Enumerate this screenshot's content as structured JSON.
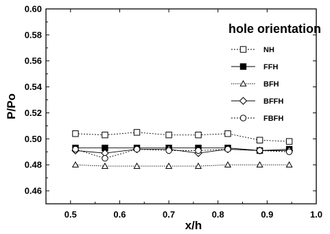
{
  "chart_data": {
    "type": "line",
    "title": "",
    "xlabel": "x/h",
    "ylabel": "P/Po",
    "xlim": [
      0.45,
      1.0
    ],
    "ylim": [
      0.45,
      0.6
    ],
    "xticks": [
      "0.5",
      "0.6",
      "0.7",
      "0.8",
      "0.9",
      "1.0"
    ],
    "yticks": [
      "0.46",
      "0.48",
      "0.50",
      "0.52",
      "0.54",
      "0.56",
      "0.58",
      "0.60"
    ],
    "legend_title": "hole orientation",
    "legend_position": "top-right",
    "grid": false,
    "x": [
      0.51,
      0.57,
      0.635,
      0.7,
      0.76,
      0.82,
      0.885,
      0.945
    ],
    "series": [
      {
        "name": "NH",
        "marker": "square-open",
        "values": [
          0.504,
          0.503,
          0.505,
          0.503,
          0.503,
          0.504,
          0.499,
          0.498
        ]
      },
      {
        "name": "FFH",
        "marker": "square-filled",
        "values": [
          0.493,
          0.493,
          0.493,
          0.493,
          0.493,
          0.493,
          0.491,
          0.492
        ]
      },
      {
        "name": "BFH",
        "marker": "triangle-open",
        "values": [
          0.48,
          0.479,
          0.479,
          0.479,
          0.479,
          0.48,
          0.48,
          0.48
        ]
      },
      {
        "name": "BFFH",
        "marker": "diamond-open",
        "values": [
          0.491,
          0.489,
          0.492,
          0.492,
          0.489,
          0.492,
          0.491,
          0.491
        ]
      },
      {
        "name": "FBFH",
        "marker": "circle-open",
        "values": [
          0.492,
          0.485,
          0.492,
          0.491,
          0.491,
          0.492,
          0.491,
          0.49
        ]
      }
    ]
  }
}
